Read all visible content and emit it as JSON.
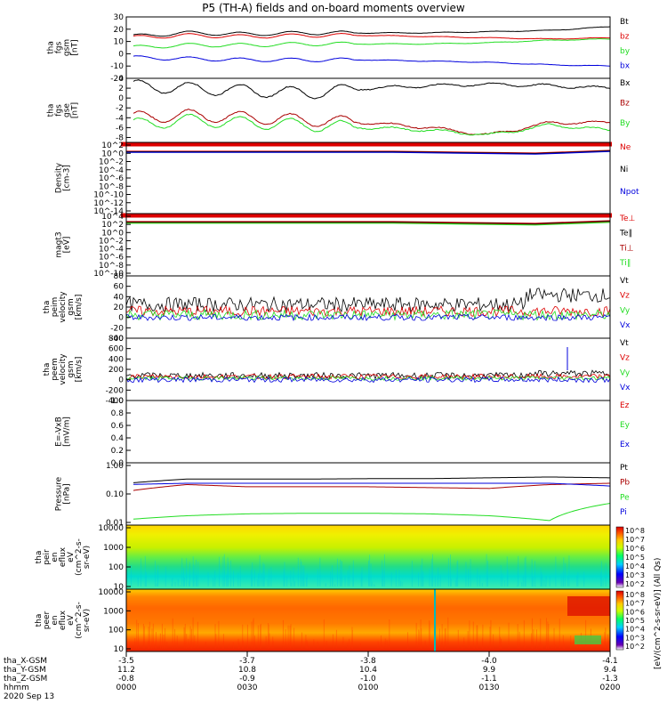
{
  "title": "P5 (TH-A) fields and on-board moments overview",
  "colors": {
    "black": "#000000",
    "red": "#dd0000",
    "green": "#22dd22",
    "blue": "#0000dd",
    "darkred": "#aa0000",
    "axis": "#000000"
  },
  "chart_data": [
    {
      "type": "line",
      "ylabel": [
        "tha",
        "fgs",
        "gsm",
        "[nT]"
      ],
      "ylim": [
        -20,
        30
      ],
      "yticks": [
        "30",
        "20",
        "10",
        "0",
        "-10",
        "-20"
      ],
      "ytick_values": [
        30,
        20,
        10,
        0,
        -10,
        -20
      ],
      "x_hours": [
        0,
        0.25,
        0.5,
        0.75,
        1.0,
        1.25,
        1.5,
        1.75,
        2.0
      ],
      "series": [
        {
          "name": "Bt",
          "color": "black",
          "values": [
            14,
            17,
            16,
            17,
            17,
            17,
            18,
            19,
            22
          ]
        },
        {
          "name": "bz",
          "color": "red",
          "values": [
            13,
            15,
            14,
            15,
            15,
            14,
            13,
            12,
            13
          ]
        },
        {
          "name": "by",
          "color": "green",
          "values": [
            5,
            7,
            7,
            8,
            8,
            8,
            9,
            11,
            12
          ]
        },
        {
          "name": "bx",
          "color": "blue",
          "values": [
            -3,
            -4,
            -5,
            -5,
            -5,
            -6,
            -7,
            -9,
            -10
          ]
        }
      ]
    },
    {
      "type": "line",
      "ylabel": [
        "tha",
        "fgs",
        "gse",
        "[nT]"
      ],
      "ylim": [
        -9,
        4
      ],
      "yticks": [
        "4",
        "2",
        "0",
        "-2",
        "-4",
        "-6",
        "-8"
      ],
      "ytick_values": [
        4,
        2,
        0,
        -2,
        -4,
        -6,
        -8
      ],
      "x_hours": [
        0,
        0.25,
        0.5,
        0.75,
        1.0,
        1.25,
        1.5,
        1.75,
        2.0
      ],
      "series": [
        {
          "name": "Bx",
          "color": "black",
          "values": [
            2.5,
            2.0,
            1.5,
            1.0,
            2.0,
            2.5,
            2.8,
            2.5,
            2.0
          ]
        },
        {
          "name": "Bz",
          "color": "darkred",
          "values": [
            -4,
            -3.5,
            -4,
            -4.5,
            -5,
            -6,
            -7.5,
            -5,
            -5
          ]
        },
        {
          "name": "By",
          "color": "green",
          "values": [
            -5.5,
            -4.5,
            -5,
            -5.5,
            -6,
            -6.5,
            -7.5,
            -5.5,
            -6.5
          ]
        }
      ]
    },
    {
      "type": "line",
      "ylabel": [
        "Density",
        "[cm-3]"
      ],
      "yscale": "log",
      "yticks": [
        "10^2",
        "10^0",
        "10^-2",
        "10^-4",
        "10^-6",
        "10^-8",
        "10^-10",
        "10^-12",
        "10^-14"
      ],
      "series": [
        {
          "name": "Ne",
          "color": "red"
        },
        {
          "name": "Ni",
          "color": "black"
        },
        {
          "name": "Npot",
          "color": "blue"
        }
      ]
    },
    {
      "type": "line",
      "ylabel": [
        "magt3",
        "[eV]"
      ],
      "yscale": "log",
      "yticks": [
        "10^4",
        "10^2",
        "10^0",
        "10^-2",
        "10^-4",
        "10^-6",
        "10^-8",
        "10^-10"
      ],
      "series": [
        {
          "name": "Te⊥",
          "color": "red"
        },
        {
          "name": "Te∥",
          "color": "black"
        },
        {
          "name": "Ti⊥",
          "color": "darkred"
        },
        {
          "name": "Ti∥",
          "color": "green"
        }
      ]
    },
    {
      "type": "line",
      "ylabel": [
        "tha",
        "peim",
        "velocity",
        "gsm",
        "[km/s]"
      ],
      "ylim": [
        -40,
        80
      ],
      "yticks": [
        "80",
        "60",
        "40",
        "20",
        "0",
        "-20",
        "-40"
      ],
      "ytick_values": [
        80,
        60,
        40,
        20,
        0,
        -20,
        -40
      ],
      "series": [
        {
          "name": "Vt",
          "color": "black"
        },
        {
          "name": "Vz",
          "color": "red"
        },
        {
          "name": "Vy",
          "color": "green"
        },
        {
          "name": "Vx",
          "color": "blue"
        }
      ]
    },
    {
      "type": "line",
      "ylabel": [
        "tha",
        "peem",
        "velocity",
        "gsm",
        "[km/s]"
      ],
      "ylim": [
        -400,
        800
      ],
      "yticks": [
        "800",
        "600",
        "400",
        "200",
        "0",
        "-200",
        "-400"
      ],
      "ytick_values": [
        800,
        600,
        400,
        200,
        0,
        -200,
        -400
      ],
      "series": [
        {
          "name": "Vt",
          "color": "black"
        },
        {
          "name": "Vz",
          "color": "red"
        },
        {
          "name": "Vy",
          "color": "green"
        },
        {
          "name": "Vx",
          "color": "blue"
        }
      ]
    },
    {
      "type": "line",
      "ylabel": [
        "E=-VxB",
        "[mV/m]"
      ],
      "ylim": [
        0,
        1.0
      ],
      "yticks": [
        "1.0",
        "0.8",
        "0.6",
        "0.4",
        "0.2",
        "0.0"
      ],
      "ytick_values": [
        1.0,
        0.8,
        0.6,
        0.4,
        0.2,
        0.0
      ],
      "series": [
        {
          "name": "Ez",
          "color": "red"
        },
        {
          "name": "Ey",
          "color": "green"
        },
        {
          "name": "Ex",
          "color": "blue"
        }
      ]
    },
    {
      "type": "line",
      "ylabel": [
        "Pressure",
        "[nPa]"
      ],
      "yscale": "log",
      "yticks": [
        "1.00",
        "0.10",
        "0.01"
      ],
      "ytick_values": [
        1.0,
        0.1,
        0.01
      ],
      "x_hours": [
        0,
        0.25,
        0.5,
        0.75,
        1.0,
        1.25,
        1.5,
        1.75,
        2.0
      ],
      "series": [
        {
          "name": "Pt",
          "color": "black",
          "values": [
            0.22,
            0.3,
            0.3,
            0.3,
            0.31,
            0.31,
            0.33,
            0.35,
            0.33
          ]
        },
        {
          "name": "Pb",
          "color": "darkred",
          "values": [
            0.12,
            0.2,
            0.17,
            0.17,
            0.17,
            0.16,
            0.15,
            0.2,
            0.22
          ]
        },
        {
          "name": "Pe",
          "color": "green",
          "values": [
            0.015,
            0.02,
            0.023,
            0.024,
            0.024,
            0.023,
            0.02,
            0.014,
            0.05
          ]
        },
        {
          "name": "Pi",
          "color": "blue",
          "values": [
            0.2,
            0.22,
            0.22,
            0.22,
            0.22,
            0.22,
            0.22,
            0.22,
            0.18
          ]
        }
      ]
    },
    {
      "type": "heatmap",
      "ylabel": [
        "tha",
        "peir",
        "en",
        "eflux",
        "eV",
        "(cm^2-s-",
        "sr-eV)"
      ],
      "yscale": "log",
      "yticks": [
        "10000",
        "1000",
        "100",
        "10"
      ],
      "colorbar_ticks": [
        "10^8",
        "10^7",
        "10^6",
        "10^5",
        "10^4",
        "10^3",
        "10^2"
      ]
    },
    {
      "type": "heatmap",
      "ylabel": [
        "tha",
        "peer",
        "en",
        "eflux",
        "eV",
        "(cm^2-s-",
        "sr-eV)"
      ],
      "yscale": "log",
      "yticks": [
        "10000",
        "1000",
        "100",
        "10"
      ],
      "colorbar_ticks": [
        "10^8",
        "10^7",
        "10^6",
        "10^5",
        "10^4",
        "10^3",
        "10^2"
      ],
      "colorbar_label": "[eV/(cm^2-s-sr-eV)] (All Qs)"
    }
  ],
  "x_axis": {
    "rows": [
      {
        "label": "tha_X-GSM",
        "values": [
          "-3.5",
          "-3.7",
          "-3.8",
          "-4.0",
          "-4.1"
        ]
      },
      {
        "label": "tha_Y-GSM",
        "values": [
          "11.2",
          "10.8",
          "10.4",
          "9.9",
          "9.4"
        ]
      },
      {
        "label": "tha_Z-GSM",
        "values": [
          "-0.8",
          "-0.9",
          "-1.0",
          "-1.1",
          "-1.3"
        ]
      },
      {
        "label": "hhmm",
        "values": [
          "0000",
          "0030",
          "0100",
          "0130",
          "0200"
        ]
      }
    ],
    "date": "2020 Sep 13"
  }
}
